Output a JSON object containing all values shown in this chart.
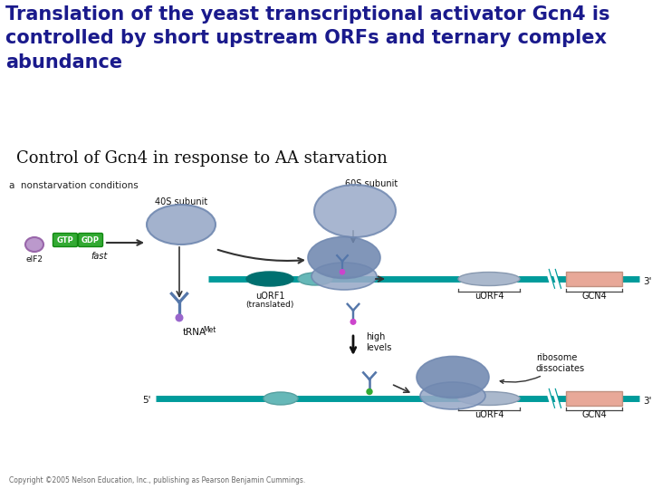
{
  "title": "Translation of the yeast transcriptional activator Gcn4 is\ncontrolled by short upstream ORFs and ternary complex\nabundance",
  "title_color": "#1a1a8c",
  "title_fontsize": 15,
  "subtitle": "Control of Gcn4 in response to AA starvation",
  "subtitle_fontsize": 13,
  "subtitle_color": "#111111",
  "background_color": "#ffffff",
  "label_a": "a  nonstarvation conditions",
  "copyright": "Copyright ©2005 Nelson Education, Inc., publishing as Pearson Benjamin Cummings.",
  "teal": "#009b9b",
  "light_blue_ribosome": "#99aac8",
  "darker_blue_ribosome": "#7088b0",
  "dark_teal_oval": "#007070",
  "salmon": "#e8a898",
  "green_gtp": "#33aa33",
  "purple_eif2": "#aa88bb",
  "tRNA_blue": "#5577aa"
}
